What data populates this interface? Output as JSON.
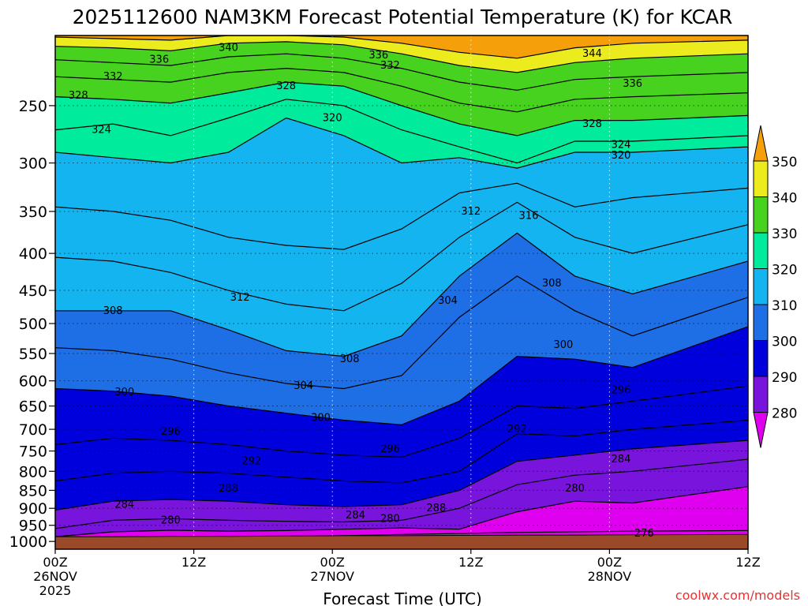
{
  "chart_data": {
    "type": "heatmap",
    "title": "2025112600 NAM3KM Forecast Potential Temperature (K) for KCAR",
    "xlabel": "Forecast Time (UTC)",
    "ylabel": "",
    "watermark": "coolwx.com/models",
    "x_range_hours": [
      0,
      60
    ],
    "y_axis": {
      "ticks": [
        250,
        300,
        350,
        400,
        450,
        500,
        550,
        600,
        650,
        700,
        750,
        800,
        850,
        900,
        950,
        1000
      ],
      "tick_labels": [
        "250",
        "300",
        "350",
        "400",
        "450",
        "500",
        "550",
        "600",
        "650",
        "700",
        "750",
        "800",
        "850",
        "900",
        "950",
        "1000"
      ],
      "range_hpa": [
        200,
        1025
      ],
      "scale": "log-pressure"
    },
    "x_axis": {
      "ticks": [
        {
          "hour": 0,
          "line1": "00Z",
          "line2": "26NOV",
          "line3": "2025"
        },
        {
          "hour": 12,
          "line1": "12Z",
          "line2": "",
          "line3": ""
        },
        {
          "hour": 24,
          "line1": "00Z",
          "line2": "27NOV",
          "line3": ""
        },
        {
          "hour": 36,
          "line1": "12Z",
          "line2": "",
          "line3": ""
        },
        {
          "hour": 48,
          "line1": "00Z",
          "line2": "28NOV",
          "line3": ""
        },
        {
          "hour": 60,
          "line1": "12Z",
          "line2": "",
          "line3": ""
        }
      ]
    },
    "colorbar": {
      "labels": [
        "350",
        "340",
        "330",
        "320",
        "310",
        "300",
        "290",
        "280"
      ],
      "bins": [
        {
          "min": 270,
          "max": 280,
          "color": "#e000f0"
        },
        {
          "min": 280,
          "max": 290,
          "color": "#7814dc"
        },
        {
          "min": 290,
          "max": 300,
          "color": "#0000dc"
        },
        {
          "min": 300,
          "max": 310,
          "color": "#1e6ee6"
        },
        {
          "min": 310,
          "max": 320,
          "color": "#14b4f0"
        },
        {
          "min": 320,
          "max": 330,
          "color": "#00eb9b"
        },
        {
          "min": 330,
          "max": 340,
          "color": "#46d21e"
        },
        {
          "min": 340,
          "max": 350,
          "color": "#ebeb1e"
        },
        {
          "min": 350,
          "max": 360,
          "color": "#f5a00a"
        }
      ]
    },
    "series": [
      {
        "name": "276 K",
        "theta": 276,
        "pressure": [
          1000,
          995,
          990,
          988,
          985,
          982,
          978,
          975,
          972,
          970,
          968,
          966
        ]
      },
      {
        "name": "280 K",
        "theta": 280,
        "pressure": [
          985,
          970,
          965,
          968,
          966,
          962,
          958,
          962,
          910,
          880,
          885,
          840
        ]
      },
      {
        "name": "284 K",
        "theta": 284,
        "pressure": [
          960,
          935,
          930,
          935,
          938,
          940,
          935,
          900,
          835,
          810,
          800,
          770
        ]
      },
      {
        "name": "288 K",
        "theta": 288,
        "pressure": [
          905,
          880,
          875,
          880,
          890,
          895,
          890,
          850,
          775,
          760,
          745,
          725
        ]
      },
      {
        "name": "292 K",
        "theta": 292,
        "pressure": [
          825,
          805,
          800,
          805,
          815,
          825,
          830,
          800,
          710,
          715,
          700,
          680
        ]
      },
      {
        "name": "296 K",
        "theta": 296,
        "pressure": [
          735,
          720,
          725,
          735,
          750,
          760,
          765,
          720,
          650,
          655,
          640,
          610
        ]
      },
      {
        "name": "300 K",
        "theta": 300,
        "pressure": [
          615,
          620,
          630,
          650,
          665,
          680,
          690,
          640,
          555,
          560,
          575,
          505
        ]
      },
      {
        "name": "304 K",
        "theta": 304,
        "pressure": [
          540,
          545,
          560,
          585,
          605,
          615,
          590,
          490,
          430,
          480,
          520,
          460
        ]
      },
      {
        "name": "308 K",
        "theta": 308,
        "pressure": [
          480,
          480,
          480,
          510,
          545,
          555,
          520,
          430,
          375,
          430,
          455,
          410
        ]
      },
      {
        "name": "312 K",
        "theta": 312,
        "pressure": [
          405,
          410,
          425,
          450,
          470,
          480,
          440,
          380,
          340,
          380,
          400,
          365
        ]
      },
      {
        "name": "316 K",
        "theta": 316,
        "pressure": [
          345,
          350,
          360,
          380,
          390,
          395,
          370,
          330,
          320,
          345,
          335,
          325
        ]
      },
      {
        "name": "320 K",
        "theta": 320,
        "pressure": [
          290,
          295,
          300,
          290,
          260,
          275,
          300,
          295,
          305,
          290,
          290,
          285
        ]
      },
      {
        "name": "324 K",
        "theta": 324,
        "pressure": [
          270,
          265,
          275,
          260,
          245,
          250,
          270,
          285,
          300,
          280,
          280,
          275
        ]
      },
      {
        "name": "328 K",
        "theta": 328,
        "pressure": [
          243,
          245,
          248,
          240,
          232,
          235,
          250,
          265,
          275,
          262,
          262,
          258
        ]
      },
      {
        "name": "332 K",
        "theta": 332,
        "pressure": [
          228,
          230,
          232,
          225,
          222,
          225,
          235,
          248,
          255,
          245,
          243,
          240
        ]
      },
      {
        "name": "336 K",
        "theta": 336,
        "pressure": [
          216,
          218,
          220,
          214,
          212,
          215,
          222,
          232,
          238,
          230,
          228,
          225
        ]
      },
      {
        "name": "340 K",
        "theta": 340,
        "pressure": [
          207,
          208,
          210,
          205,
          204,
          206,
          212,
          220,
          225,
          218,
          215,
          212
        ]
      },
      {
        "name": "344 K",
        "theta": 344,
        "pressure": [
          201,
          202,
          203,
          200,
          200,
          201,
          205,
          211,
          215,
          208,
          205,
          203
        ]
      }
    ],
    "series_hours": [
      0,
      5,
      10,
      15,
      20,
      25,
      30,
      35,
      40,
      45,
      50,
      60
    ],
    "contour_labels": [
      {
        "text": "340",
        "hour": 15.0,
        "hpa": 208
      },
      {
        "text": "336",
        "hour": 9.0,
        "hpa": 216
      },
      {
        "text": "332",
        "hour": 5.0,
        "hpa": 228
      },
      {
        "text": "328",
        "hour": 2.0,
        "hpa": 242
      },
      {
        "text": "324",
        "hour": 4.0,
        "hpa": 270
      },
      {
        "text": "328",
        "hour": 20.0,
        "hpa": 235
      },
      {
        "text": "320",
        "hour": 24.0,
        "hpa": 260
      },
      {
        "text": "336",
        "hour": 28.0,
        "hpa": 213
      },
      {
        "text": "332",
        "hour": 29.0,
        "hpa": 220
      },
      {
        "text": "344",
        "hour": 46.5,
        "hpa": 212
      },
      {
        "text": "336",
        "hour": 50.0,
        "hpa": 233
      },
      {
        "text": "328",
        "hour": 46.5,
        "hpa": 265
      },
      {
        "text": "324",
        "hour": 49.0,
        "hpa": 283
      },
      {
        "text": "320",
        "hour": 49.0,
        "hpa": 293
      },
      {
        "text": "312",
        "hour": 36.0,
        "hpa": 350
      },
      {
        "text": "316",
        "hour": 41.0,
        "hpa": 355
      },
      {
        "text": "312",
        "hour": 16.0,
        "hpa": 460
      },
      {
        "text": "308",
        "hour": 5.0,
        "hpa": 480
      },
      {
        "text": "304",
        "hour": 34.0,
        "hpa": 465
      },
      {
        "text": "308",
        "hour": 43.0,
        "hpa": 440
      },
      {
        "text": "300",
        "hour": 44.0,
        "hpa": 535
      },
      {
        "text": "308",
        "hour": 25.5,
        "hpa": 560
      },
      {
        "text": "304",
        "hour": 21.5,
        "hpa": 610
      },
      {
        "text": "300",
        "hour": 6.0,
        "hpa": 622
      },
      {
        "text": "296",
        "hour": 49.0,
        "hpa": 618
      },
      {
        "text": "300",
        "hour": 23.0,
        "hpa": 675
      },
      {
        "text": "296",
        "hour": 10.0,
        "hpa": 705
      },
      {
        "text": "292",
        "hour": 40.0,
        "hpa": 700
      },
      {
        "text": "296",
        "hour": 29.0,
        "hpa": 745
      },
      {
        "text": "292",
        "hour": 17.0,
        "hpa": 775
      },
      {
        "text": "284",
        "hour": 49.0,
        "hpa": 770
      },
      {
        "text": "288",
        "hour": 15.0,
        "hpa": 845
      },
      {
        "text": "280",
        "hour": 45.0,
        "hpa": 845
      },
      {
        "text": "284",
        "hour": 6.0,
        "hpa": 890
      },
      {
        "text": "288",
        "hour": 33.0,
        "hpa": 900
      },
      {
        "text": "284",
        "hour": 26.0,
        "hpa": 920
      },
      {
        "text": "280",
        "hour": 29.0,
        "hpa": 930
      },
      {
        "text": "280",
        "hour": 10.0,
        "hpa": 935
      },
      {
        "text": "276",
        "hour": 51.0,
        "hpa": 975
      }
    ],
    "surface_hpa": [
      985,
      985,
      984,
      984,
      983,
      982,
      982,
      981,
      980,
      980,
      979,
      978
    ],
    "grid": true
  }
}
